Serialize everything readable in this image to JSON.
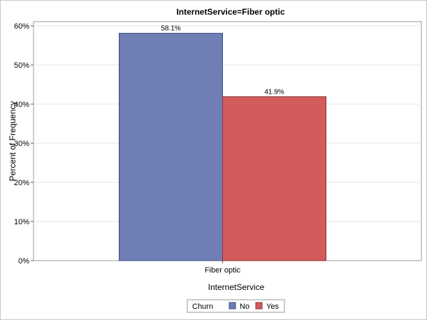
{
  "chart_data": {
    "type": "bar",
    "title": "InternetService=Fiber optic",
    "xlabel": "InternetService",
    "ylabel": "Percent of Frequency",
    "categories": [
      "Fiber optic"
    ],
    "series": [
      {
        "name": "No",
        "values": [
          58.1
        ],
        "label": "58.1%",
        "color": "#6f7fb5"
      },
      {
        "name": "Yes",
        "values": [
          41.9
        ],
        "label": "41.9%",
        "color": "#d35b5b"
      }
    ],
    "ylim": [
      0,
      60
    ],
    "yticks": [
      0,
      10,
      20,
      30,
      40,
      50,
      60
    ],
    "ytick_labels": [
      "0%",
      "10%",
      "20%",
      "30%",
      "40%",
      "50%",
      "60%"
    ],
    "grid": true,
    "legend": {
      "title": "Churn",
      "position": "bottom-center"
    }
  }
}
